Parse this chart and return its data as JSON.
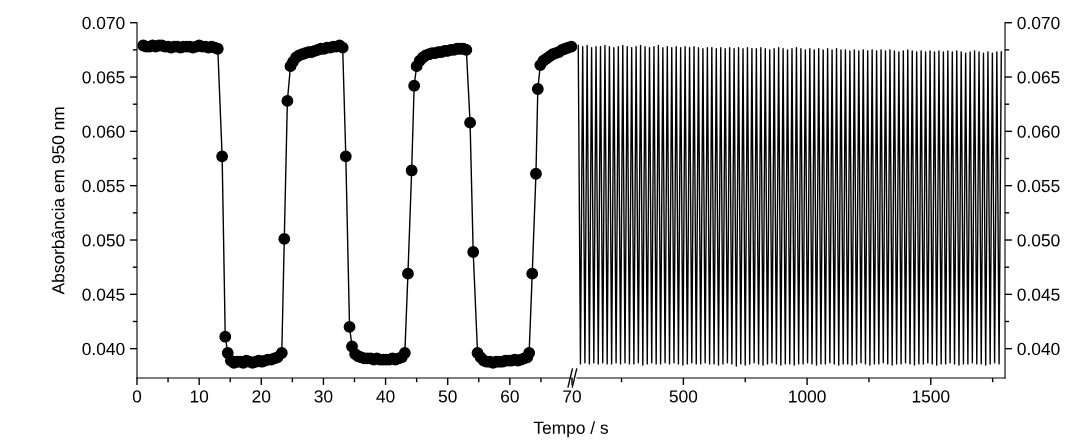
{
  "chart_data": [
    {
      "type": "line",
      "ylabel": "Absorbância em 950 nm",
      "xlabel": "Tempo / s",
      "marker": "circle",
      "grid": false,
      "xlim": [
        0,
        70
      ],
      "ylim": [
        0.0373,
        0.07
      ],
      "xticks": [
        0,
        {
          "value": 5,
          "label": null
        },
        10,
        {
          "value": 15,
          "label": null
        },
        20,
        {
          "value": 25,
          "label": null
        },
        30,
        {
          "value": 35,
          "label": null
        },
        40,
        {
          "value": 45,
          "label": null
        },
        50,
        {
          "value": 55,
          "label": null
        },
        60,
        {
          "value": 65,
          "label": null
        },
        70
      ],
      "yticks": [
        {
          "value": 0.04,
          "label": "0.040"
        },
        {
          "value": 0.0425,
          "label": null
        },
        {
          "value": 0.045,
          "label": "0.045"
        },
        {
          "value": 0.0475,
          "label": null
        },
        {
          "value": 0.05,
          "label": "0.050"
        },
        {
          "value": 0.0525,
          "label": null
        },
        {
          "value": 0.055,
          "label": "0.055"
        },
        {
          "value": 0.0575,
          "label": null
        },
        {
          "value": 0.06,
          "label": "0.060"
        },
        {
          "value": 0.0625,
          "label": null
        },
        {
          "value": 0.065,
          "label": "0.065"
        },
        {
          "value": 0.0675,
          "label": null
        },
        {
          "value": 0.07,
          "label": "0.070"
        }
      ],
      "series": [
        {
          "color": "#000000",
          "x": [
            1,
            1.5,
            2,
            2.5,
            3,
            3.5,
            4,
            4.5,
            5,
            5.5,
            6,
            6.5,
            7,
            7.5,
            8,
            8.5,
            9,
            9.5,
            10,
            10.5,
            11,
            11.5,
            12,
            12.5,
            13,
            13.7,
            14.2,
            14.6,
            15.1,
            15.6,
            16.1,
            16.6,
            17.1,
            17.6,
            18.1,
            18.6,
            19.1,
            19.6,
            20.1,
            20.6,
            21.1,
            21.6,
            22.1,
            22.6,
            23.3,
            23.7,
            24.2,
            24.7,
            25.1,
            25.6,
            26.1,
            26.6,
            27.1,
            27.6,
            28.1,
            28.6,
            29.1,
            29.6,
            30.1,
            30.6,
            31.1,
            31.6,
            32.1,
            32.6,
            33.1,
            33.6,
            34.2,
            34.6,
            35.1,
            35.6,
            36.1,
            36.6,
            37.1,
            37.6,
            38.1,
            38.6,
            39.1,
            39.6,
            40.1,
            40.6,
            41.1,
            41.6,
            42.1,
            42.6,
            43.1,
            43.6,
            44.2,
            44.6,
            45.0,
            45.5,
            46.0,
            46.5,
            47.0,
            47.5,
            48.0,
            48.5,
            49.0,
            49.5,
            50.0,
            50.5,
            51.0,
            51.5,
            52.0,
            52.5,
            53.0,
            53.6,
            54.1,
            54.8,
            55.3,
            55.8,
            56.3,
            56.8,
            57.3,
            57.8,
            58.3,
            58.8,
            59.3,
            59.8,
            60.3,
            60.8,
            61.3,
            61.8,
            62.3,
            62.8,
            63.1,
            63.6,
            64.2,
            64.5,
            64.9,
            65.4,
            65.9,
            66.4,
            66.9,
            67.4,
            67.9,
            68.4,
            68.9,
            69.4,
            69.9
          ],
          "values": [
            0.0679,
            0.0678,
            0.0678,
            0.0679,
            0.0678,
            0.0679,
            0.0679,
            0.0678,
            0.0678,
            0.0677,
            0.0678,
            0.0678,
            0.0677,
            0.0678,
            0.0678,
            0.0678,
            0.0677,
            0.0678,
            0.0679,
            0.0678,
            0.0678,
            0.0677,
            0.0678,
            0.0677,
            0.0676,
            0.0577,
            0.0411,
            0.0396,
            0.0389,
            0.0387,
            0.0388,
            0.0388,
            0.0387,
            0.0389,
            0.0388,
            0.0387,
            0.0388,
            0.0389,
            0.0388,
            0.0389,
            0.039,
            0.039,
            0.0391,
            0.0392,
            0.0396,
            0.0501,
            0.0628,
            0.066,
            0.0664,
            0.0668,
            0.067,
            0.0671,
            0.0672,
            0.0673,
            0.0673,
            0.0674,
            0.0675,
            0.0676,
            0.0676,
            0.0677,
            0.0677,
            0.0678,
            0.0678,
            0.0679,
            0.0677,
            0.0577,
            0.042,
            0.0402,
            0.0395,
            0.0393,
            0.0392,
            0.0391,
            0.0391,
            0.0391,
            0.039,
            0.0391,
            0.039,
            0.039,
            0.039,
            0.039,
            0.0391,
            0.039,
            0.0391,
            0.0392,
            0.0396,
            0.0469,
            0.0564,
            0.0642,
            0.066,
            0.0665,
            0.0668,
            0.067,
            0.0671,
            0.0672,
            0.0672,
            0.0673,
            0.0673,
            0.0674,
            0.0674,
            0.0675,
            0.0675,
            0.0676,
            0.0676,
            0.0676,
            0.0675,
            0.0608,
            0.0489,
            0.0396,
            0.0392,
            0.0389,
            0.0388,
            0.0388,
            0.0387,
            0.0388,
            0.0388,
            0.0388,
            0.0389,
            0.0389,
            0.0389,
            0.039,
            0.0389,
            0.039,
            0.0391,
            0.0392,
            0.0396,
            0.0469,
            0.0561,
            0.0639,
            0.0661,
            0.0665,
            0.0667,
            0.0669,
            0.0671,
            0.0672,
            0.0673,
            0.0675,
            0.0676,
            0.0677,
            0.0678
          ]
        }
      ]
    },
    {
      "type": "line",
      "marker": "none",
      "grid": false,
      "xlim": [
        70,
        1800
      ],
      "xticks": [
        {
          "value": 250,
          "label": null
        },
        500,
        {
          "value": 750,
          "label": null
        },
        1000,
        {
          "value": 1250,
          "label": null
        },
        1500,
        {
          "value": 1750,
          "label": null
        }
      ],
      "y2lim": [
        0.0373,
        0.07
      ],
      "y2ticks": [
        {
          "value": 0.04,
          "label": "0.040"
        },
        {
          "value": 0.0425,
          "label": null
        },
        {
          "value": 0.045,
          "label": "0.045"
        },
        {
          "value": 0.0475,
          "label": null
        },
        {
          "value": 0.05,
          "label": "0.050"
        },
        {
          "value": 0.0525,
          "label": null
        },
        {
          "value": 0.055,
          "label": "0.055"
        },
        {
          "value": 0.0575,
          "label": null
        },
        {
          "value": 0.06,
          "label": "0.060"
        },
        {
          "value": 0.0625,
          "label": null
        },
        {
          "value": 0.065,
          "label": "0.065"
        },
        {
          "value": 0.0675,
          "label": null
        },
        {
          "value": 0.07,
          "label": "0.070"
        }
      ],
      "series": [
        {
          "color": "#000000",
          "axis": "y2",
          "x": [
            75,
            84,
            93,
            102,
            111,
            120,
            129,
            138,
            147,
            156,
            165,
            174,
            183,
            192,
            201,
            210,
            219,
            228,
            237,
            246,
            255,
            264,
            273,
            282,
            291,
            300,
            309,
            318,
            327,
            336,
            345,
            354,
            363,
            372,
            381,
            390,
            399,
            408,
            417,
            426,
            435,
            444,
            453,
            462,
            471,
            480,
            489,
            498,
            507,
            516,
            525,
            534,
            543,
            552,
            561,
            570,
            579,
            588,
            597,
            606,
            615,
            624,
            633,
            642,
            651,
            660,
            669,
            678,
            687,
            696,
            705,
            714,
            723,
            732,
            741,
            750,
            759,
            768,
            777,
            786,
            795,
            804,
            813,
            822,
            831,
            840,
            849,
            858,
            867,
            876,
            885,
            894,
            903,
            912,
            921,
            930,
            939,
            948,
            957,
            966,
            975,
            984,
            993,
            1002,
            1011,
            1020,
            1029,
            1038,
            1047,
            1056,
            1065,
            1074,
            1083,
            1092,
            1101,
            1110,
            1119,
            1128,
            1137,
            1146,
            1155,
            1164,
            1173,
            1182,
            1191,
            1200,
            1209,
            1218,
            1227,
            1236,
            1245,
            1254,
            1263,
            1272,
            1281,
            1290,
            1299,
            1308,
            1317,
            1326,
            1335,
            1344,
            1353,
            1362,
            1371,
            1380,
            1389,
            1398,
            1407,
            1416,
            1425,
            1434,
            1443,
            1452,
            1461,
            1470,
            1479,
            1488,
            1497,
            1506,
            1515,
            1524,
            1533,
            1542,
            1551,
            1560,
            1569,
            1578,
            1587,
            1596,
            1605,
            1614,
            1623,
            1632,
            1641,
            1650,
            1659,
            1668,
            1677,
            1686,
            1695,
            1704,
            1713,
            1722,
            1731,
            1740,
            1749,
            1758,
            1767,
            1776,
            1785
          ],
          "values": [
            0.0679,
            0.0386,
            0.0678,
            0.0387,
            0.0679,
            0.0386,
            0.0677,
            0.0387,
            0.0678,
            0.0386,
            0.0678,
            0.0387,
            0.0679,
            0.0386,
            0.0678,
            0.0386,
            0.0677,
            0.0387,
            0.0678,
            0.0386,
            0.0679,
            0.0387,
            0.0678,
            0.0386,
            0.0677,
            0.0386,
            0.0678,
            0.0387,
            0.0679,
            0.0385,
            0.0678,
            0.0386,
            0.0677,
            0.0387,
            0.0678,
            0.0386,
            0.0679,
            0.0386,
            0.0677,
            0.0387,
            0.0678,
            0.0386,
            0.0677,
            0.0387,
            0.0678,
            0.0386,
            0.0677,
            0.0385,
            0.0678,
            0.0386,
            0.0677,
            0.0387,
            0.0678,
            0.0386,
            0.0677,
            0.0386,
            0.0676,
            0.0387,
            0.0677,
            0.0386,
            0.0677,
            0.0386,
            0.0676,
            0.0385,
            0.0677,
            0.0386,
            0.0676,
            0.0387,
            0.0677,
            0.0386,
            0.0676,
            0.0384,
            0.0677,
            0.0386,
            0.0676,
            0.0385,
            0.0677,
            0.0386,
            0.0676,
            0.0387,
            0.0676,
            0.0386,
            0.0677,
            0.0385,
            0.0676,
            0.0386,
            0.0675,
            0.0387,
            0.0676,
            0.0386,
            0.0677,
            0.0385,
            0.0676,
            0.0386,
            0.0675,
            0.0386,
            0.0676,
            0.0385,
            0.0677,
            0.0386,
            0.0676,
            0.0386,
            0.0675,
            0.0387,
            0.0676,
            0.0386,
            0.0675,
            0.0385,
            0.0676,
            0.0386,
            0.0675,
            0.0386,
            0.0676,
            0.0387,
            0.0675,
            0.0386,
            0.0676,
            0.0385,
            0.0675,
            0.0386,
            0.0675,
            0.0386,
            0.0674,
            0.0385,
            0.0675,
            0.0386,
            0.0674,
            0.0387,
            0.0675,
            0.0386,
            0.0674,
            0.0385,
            0.0675,
            0.0386,
            0.0674,
            0.0386,
            0.0675,
            0.0387,
            0.0674,
            0.0386,
            0.0675,
            0.0385,
            0.0674,
            0.0386,
            0.0673,
            0.0386,
            0.0674,
            0.0387,
            0.0675,
            0.0386,
            0.0674,
            0.0385,
            0.0673,
            0.0386,
            0.0674,
            0.0386,
            0.0673,
            0.0387,
            0.0674,
            0.0386,
            0.0673,
            0.0385,
            0.0674,
            0.0386,
            0.0673,
            0.0386,
            0.0674,
            0.0387,
            0.0673,
            0.0386,
            0.0674,
            0.0385,
            0.0673,
            0.0386,
            0.0672,
            0.0386,
            0.0673,
            0.0387,
            0.0674,
            0.0386,
            0.0673,
            0.0386,
            0.0672,
            0.0385,
            0.0673,
            0.0386,
            0.0672,
            0.0387,
            0.0673,
            0.0386,
            0.0673
          ]
        }
      ]
    }
  ]
}
